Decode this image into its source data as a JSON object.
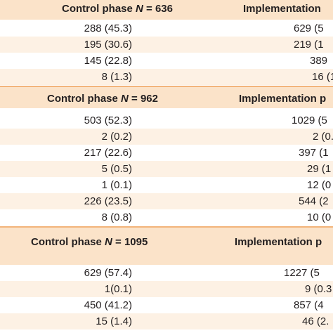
{
  "sections": [
    {
      "header": {
        "control_label": "Control phase ",
        "control_n": "N",
        "control_value": " = 636",
        "impl_label": "Implementation"
      },
      "rows": [
        {
          "control": "288 (45.3)",
          "impl": "629 (5"
        },
        {
          "control": "195 (30.6)",
          "impl": "219 (1"
        },
        {
          "control": "145 (22.8)",
          "impl": "389"
        },
        {
          "control": "8 (1.3)",
          "impl": "16 (1"
        }
      ]
    },
    {
      "header": {
        "control_label": "Control phase ",
        "control_n": "N",
        "control_value": " = 962",
        "impl_label": "Implementation p"
      },
      "rows": [
        {
          "control": "503 (52.3)",
          "impl": "1029 (5"
        },
        {
          "control": "2 (0.2)",
          "impl": "2 (0."
        },
        {
          "control": "217 (22.6)",
          "impl": "397 (1"
        },
        {
          "control": "5 (0.5)",
          "impl": "29 (1"
        },
        {
          "control": "1 (0.1)",
          "impl": "12 (0"
        },
        {
          "control": "226 (23.5)",
          "impl": "544 (2"
        },
        {
          "control": "8 (0.8)",
          "impl": "10 (0"
        }
      ]
    },
    {
      "header": {
        "control_label": "Control phase ",
        "control_n": "N",
        "control_value": " = 1095",
        "impl_label": "Implementation p"
      },
      "rows": [
        {
          "control": "629 (57.4)",
          "impl": "1227 (5"
        },
        {
          "control": "1(0.1)",
          "impl": "9 (0.3"
        },
        {
          "control": "450 (41.2)",
          "impl": "857 (4"
        },
        {
          "control": "15 (1.4)",
          "impl": "46 (2."
        }
      ]
    }
  ]
}
